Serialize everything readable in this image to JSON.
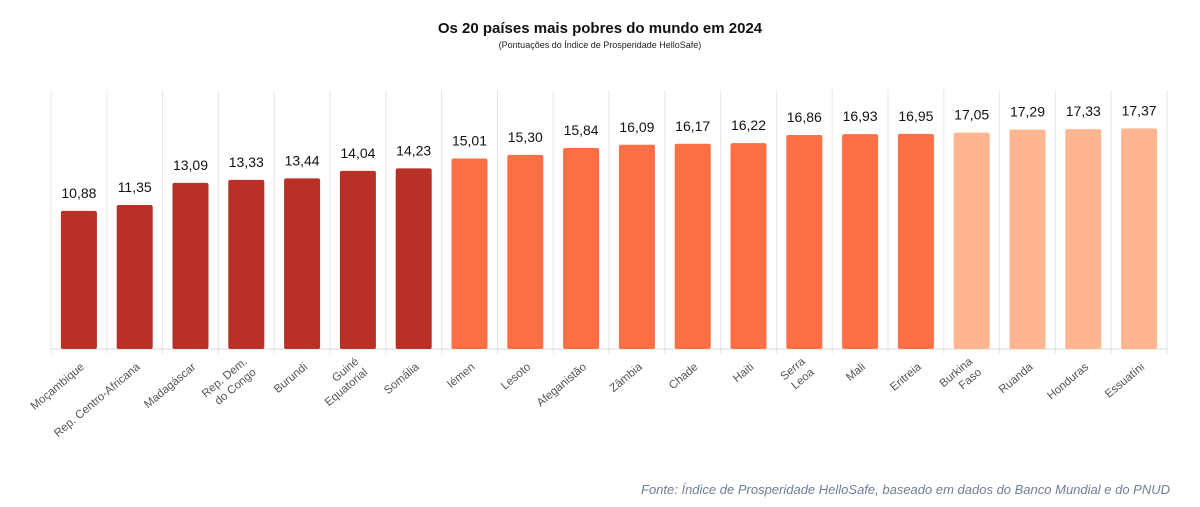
{
  "chart_data": {
    "type": "bar",
    "title": "Os 20 países mais pobres do mundo em 2024",
    "subtitle": "(Pontuações do Índice de Prosperidade HelloSafe)",
    "categories": [
      "Moçambique",
      "Rep. Centro-Africana",
      "Madagáscar",
      "Rep. Dem.\ndo Congo",
      "Burundi",
      "Guiné\nEquatorial",
      "Somália",
      "Iémen",
      "Lesoto",
      "Afeganistão",
      "Zâmbia",
      "Chade",
      "Haiti",
      "Serra\nLeoa",
      "Mali",
      "Eritreia",
      "Burkina\nFaso",
      "Ruanda",
      "Honduras",
      "Essuatíni"
    ],
    "values": [
      10.88,
      11.35,
      13.09,
      13.33,
      13.44,
      14.04,
      14.23,
      15.01,
      15.3,
      15.84,
      16.09,
      16.17,
      16.22,
      16.86,
      16.93,
      16.95,
      17.05,
      17.29,
      17.33,
      17.37
    ],
    "value_labels": [
      "10,88",
      "11,35",
      "13,09",
      "13,33",
      "13,44",
      "14,04",
      "14,23",
      "15,01",
      "15,30",
      "15,84",
      "16,09",
      "16,17",
      "16,22",
      "16,86",
      "16,93",
      "16,95",
      "17,05",
      "17,29",
      "17,33",
      "17,37"
    ],
    "groups": [
      0,
      0,
      0,
      0,
      0,
      0,
      0,
      1,
      1,
      1,
      1,
      1,
      1,
      1,
      1,
      1,
      2,
      2,
      2,
      2
    ],
    "group_colors": [
      "#b83026",
      "#fe6f45",
      "#ffb590"
    ],
    "ylim": [
      0,
      20
    ],
    "xlabel": "",
    "ylabel": "",
    "grid": true,
    "source": "Fonte: Índice de Prosperidade HelloSafe, baseado em dados do Banco Mundial e do PNUD"
  }
}
